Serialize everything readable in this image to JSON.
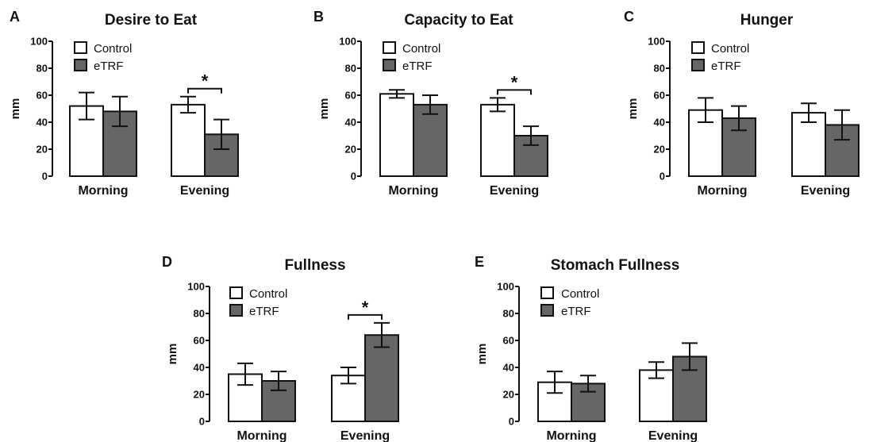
{
  "colors": {
    "control": "#ffffff",
    "eTRF": "#666666",
    "stroke": "#111111"
  },
  "chart_data": [
    {
      "panel": "A",
      "title": "Desire to Eat",
      "type": "bar",
      "ylabel": "mm",
      "ylim": [
        0,
        100
      ],
      "yticks": [
        0,
        20,
        40,
        60,
        80,
        100
      ],
      "categories": [
        "Morning",
        "Evening"
      ],
      "series": [
        {
          "name": "Control",
          "values": [
            52,
            53
          ],
          "errors": [
            10,
            6
          ]
        },
        {
          "name": "eTRF",
          "values": [
            48,
            31
          ],
          "errors": [
            11,
            11
          ]
        }
      ],
      "significance": [
        {
          "category": "Evening",
          "label": "*"
        }
      ],
      "legend": "top-left"
    },
    {
      "panel": "B",
      "title": "Capacity to Eat",
      "type": "bar",
      "ylabel": "mm",
      "ylim": [
        0,
        100
      ],
      "yticks": [
        0,
        20,
        40,
        60,
        80,
        100
      ],
      "categories": [
        "Morning",
        "Evening"
      ],
      "series": [
        {
          "name": "Control",
          "values": [
            61,
            53
          ],
          "errors": [
            3,
            5
          ]
        },
        {
          "name": "eTRF",
          "values": [
            53,
            30
          ],
          "errors": [
            7,
            7
          ]
        }
      ],
      "significance": [
        {
          "category": "Evening",
          "label": "*"
        }
      ],
      "legend": "top-left"
    },
    {
      "panel": "C",
      "title": "Hunger",
      "type": "bar",
      "ylabel": "mm",
      "ylim": [
        0,
        100
      ],
      "yticks": [
        0,
        20,
        40,
        60,
        80,
        100
      ],
      "categories": [
        "Morning",
        "Evening"
      ],
      "series": [
        {
          "name": "Control",
          "values": [
            49,
            47
          ],
          "errors": [
            9,
            7
          ]
        },
        {
          "name": "eTRF",
          "values": [
            43,
            38
          ],
          "errors": [
            9,
            11
          ]
        }
      ],
      "significance": [],
      "legend": "top-left"
    },
    {
      "panel": "D",
      "title": "Fullness",
      "type": "bar",
      "ylabel": "mm",
      "ylim": [
        0,
        100
      ],
      "yticks": [
        0,
        20,
        40,
        60,
        80,
        100
      ],
      "categories": [
        "Morning",
        "Evening"
      ],
      "series": [
        {
          "name": "Control",
          "values": [
            35,
            34
          ],
          "errors": [
            8,
            6
          ]
        },
        {
          "name": "eTRF",
          "values": [
            30,
            64
          ],
          "errors": [
            7,
            9
          ]
        }
      ],
      "significance": [
        {
          "category": "Evening",
          "label": "*"
        }
      ],
      "legend": "top-left"
    },
    {
      "panel": "E",
      "title": "Stomach Fullness",
      "type": "bar",
      "ylabel": "mm",
      "ylim": [
        0,
        100
      ],
      "yticks": [
        0,
        20,
        40,
        60,
        80,
        100
      ],
      "categories": [
        "Morning",
        "Evening"
      ],
      "series": [
        {
          "name": "Control",
          "values": [
            29,
            38
          ],
          "errors": [
            8,
            6
          ]
        },
        {
          "name": "eTRF",
          "values": [
            28,
            48
          ],
          "errors": [
            6,
            10
          ]
        }
      ],
      "significance": [],
      "legend": "top-left"
    }
  ]
}
